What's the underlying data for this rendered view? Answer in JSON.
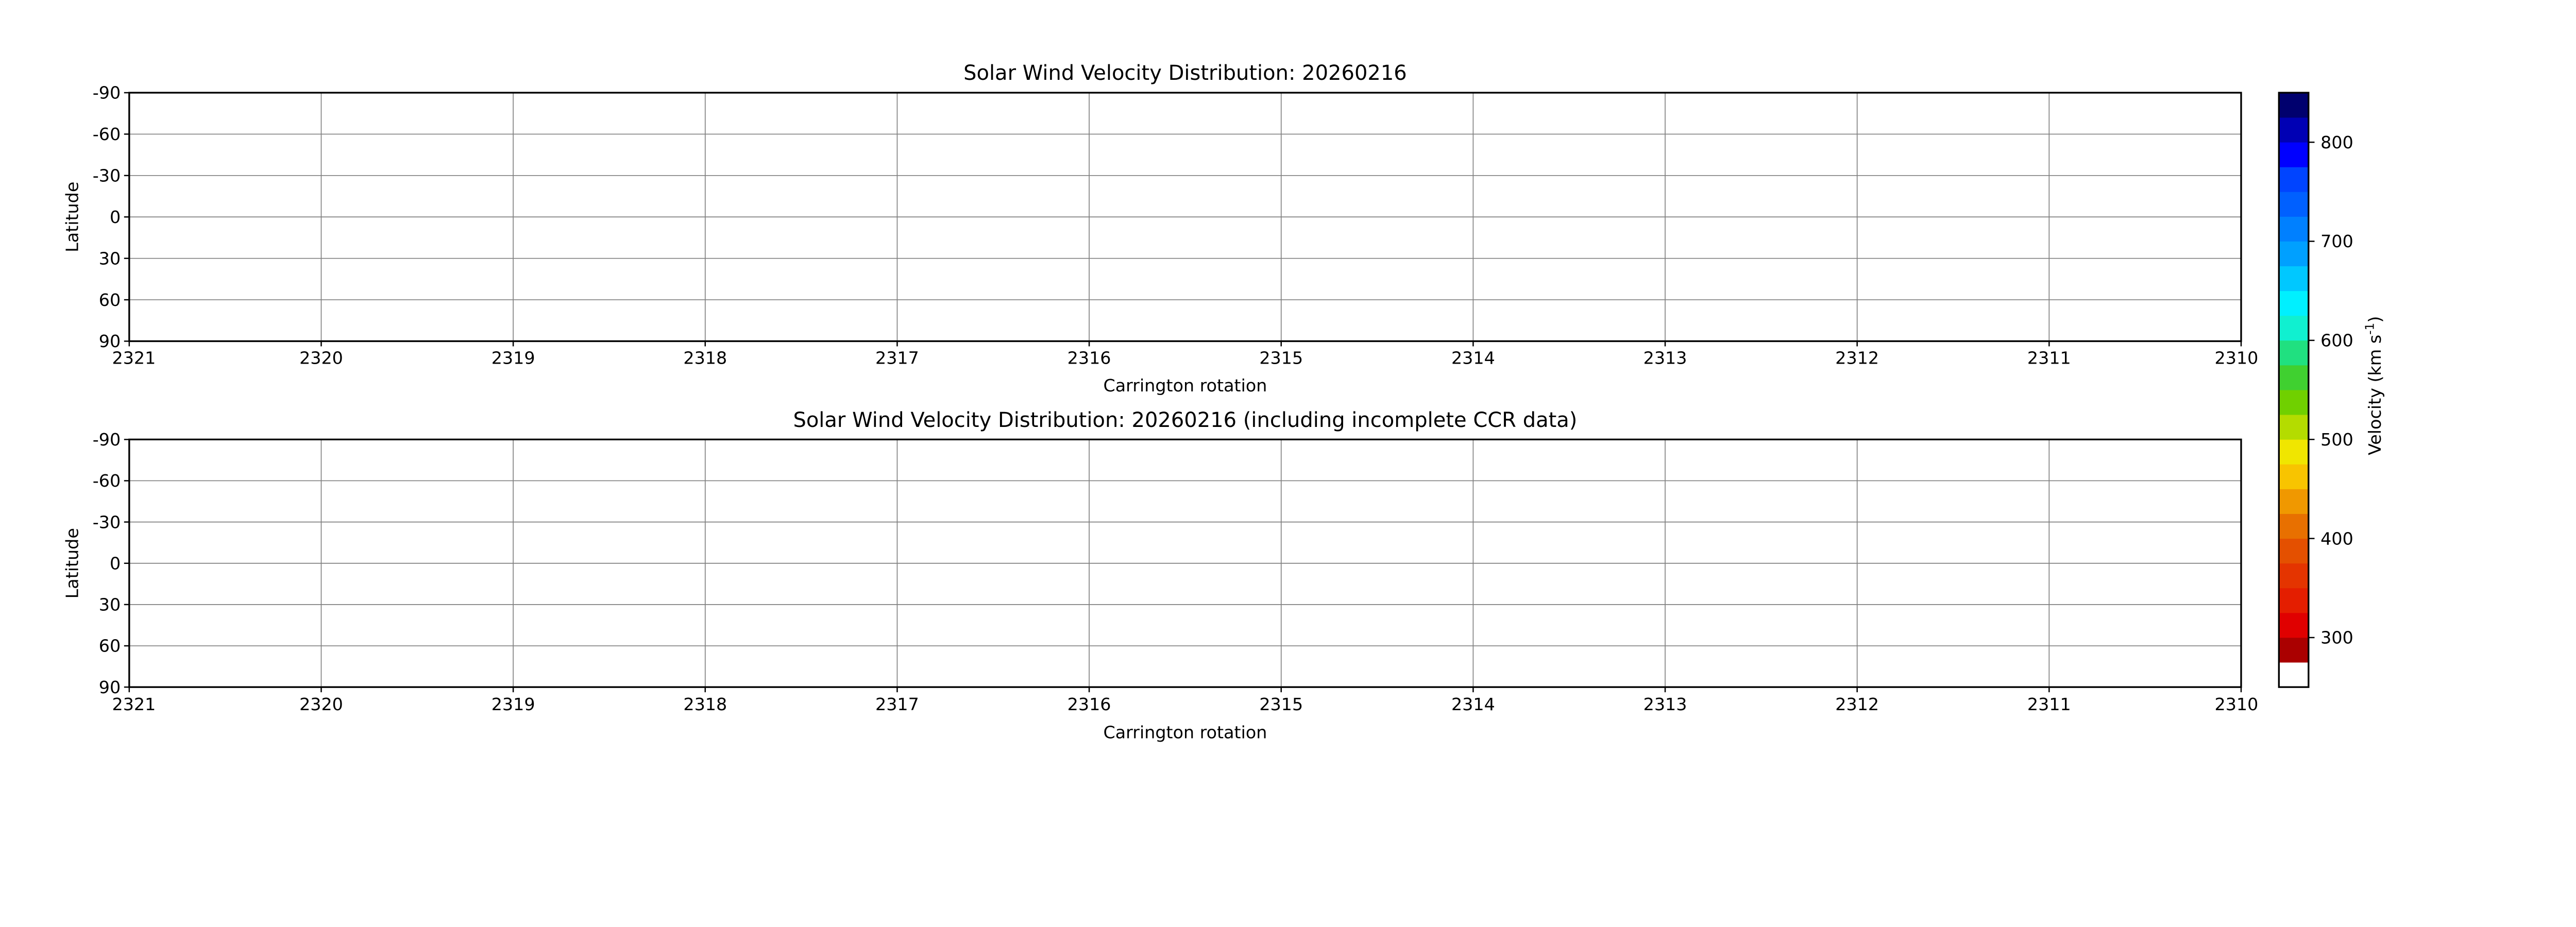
{
  "chart_data": [
    {
      "type": "heatmap",
      "title": "Solar Wind Velocity Distribution: 20260216",
      "xlabel": "Carrington rotation",
      "ylabel": "Latitude",
      "xlim": [
        2321,
        2310
      ],
      "ylim": [
        -90,
        90
      ],
      "x_ticks": [
        "2321",
        "2320",
        "2319",
        "2318",
        "2317",
        "2316",
        "2315",
        "2314",
        "2313",
        "2312",
        "2311",
        "2310"
      ],
      "y_ticks": [
        "-90",
        "-60",
        "-30",
        "0",
        "30",
        "60",
        "90"
      ],
      "grid": true,
      "values": []
    },
    {
      "type": "heatmap",
      "title": "Solar Wind Velocity Distribution: 20260216 (including incomplete CCR data)",
      "xlabel": "Carrington rotation",
      "ylabel": "Latitude",
      "xlim": [
        2321,
        2310
      ],
      "ylim": [
        -90,
        90
      ],
      "x_ticks": [
        "2321",
        "2320",
        "2319",
        "2318",
        "2317",
        "2316",
        "2315",
        "2314",
        "2313",
        "2312",
        "2311",
        "2310"
      ],
      "y_ticks": [
        "-90",
        "-60",
        "-30",
        "0",
        "30",
        "60",
        "90"
      ],
      "grid": true,
      "values": []
    }
  ],
  "colorbar": {
    "label": "Velocity (km s",
    "label_sup": "-1",
    "label_end": ")",
    "range": [
      250,
      850
    ],
    "ticks": [
      "300",
      "400",
      "500",
      "600",
      "700",
      "800"
    ],
    "colors": [
      "#ffffff",
      "#aa0000",
      "#e00000",
      "#e41e00",
      "#e43400",
      "#e45000",
      "#e87000",
      "#f09800",
      "#f8c400",
      "#f0e600",
      "#b4dc00",
      "#70d000",
      "#40d030",
      "#20e080",
      "#10f0d0",
      "#00f0ff",
      "#00c8ff",
      "#00a0ff",
      "#0080ff",
      "#0060ff",
      "#0044ff",
      "#0000ff",
      "#0000b4",
      "#00006e"
    ]
  }
}
